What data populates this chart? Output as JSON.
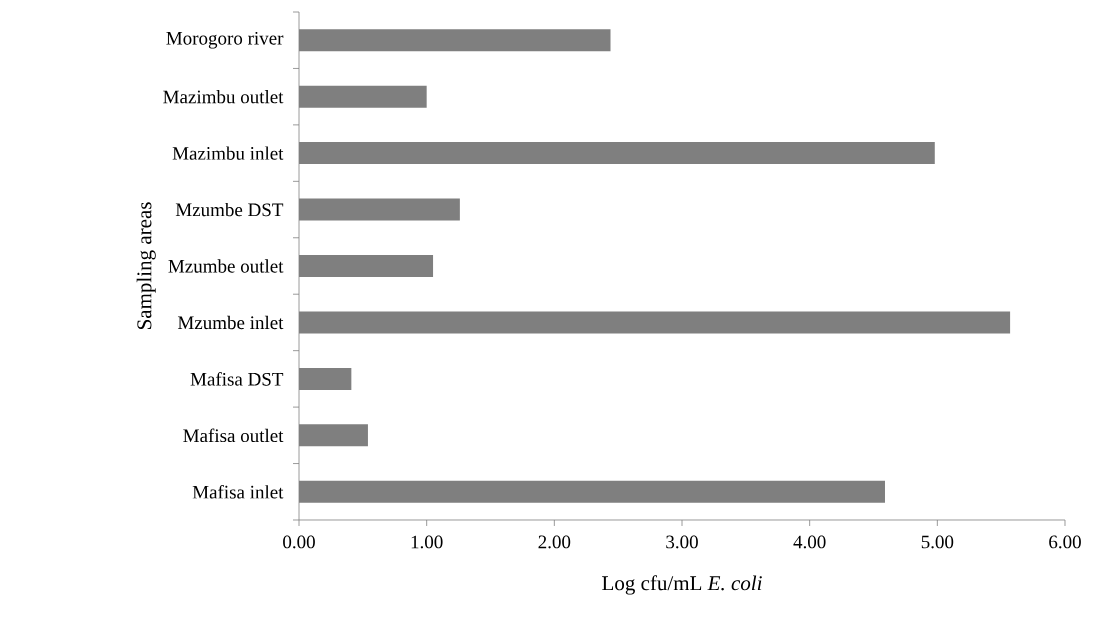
{
  "chart_data": {
    "type": "bar",
    "orientation": "horizontal",
    "categories": [
      "Morogoro river",
      "Mazimbu outlet",
      "Mazimbu inlet",
      "Mzumbe DST",
      "Mzumbe outlet",
      "Mzumbe inlet",
      "Mafisa DST",
      "Mafisa outlet",
      "Mafisa inlet"
    ],
    "values": [
      2.44,
      1.0,
      4.98,
      1.26,
      1.05,
      5.57,
      0.41,
      0.54,
      4.59
    ],
    "color": "#7f7f7f",
    "xlabel": "Log cfu/mL *E. coli*",
    "ylabel": "Sampling areas",
    "xlim": [
      0,
      6
    ],
    "xticks": [
      {
        "value": 0,
        "label": "0.00"
      },
      {
        "value": 1,
        "label": "1.00"
      },
      {
        "value": 2,
        "label": "2.00"
      },
      {
        "value": 3,
        "label": "3.00"
      },
      {
        "value": 4,
        "label": "4.00"
      },
      {
        "value": 5,
        "label": "5.00"
      },
      {
        "value": 6,
        "label": "6.00"
      }
    ]
  }
}
